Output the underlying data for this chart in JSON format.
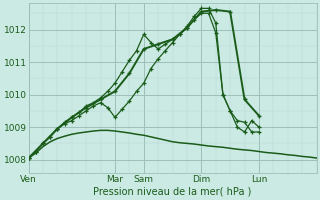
{
  "bg_color": "#cceae4",
  "grid_color_major": "#9dbfba",
  "grid_color_minor": "#b8d9d4",
  "line_color": "#1a5c1a",
  "xlabel": "Pression niveau de la mer( hPa )",
  "ylim": [
    1007.6,
    1012.8
  ],
  "yticks": [
    1008,
    1009,
    1010,
    1011,
    1012
  ],
  "xlim": [
    0,
    40
  ],
  "day_positions": [
    0,
    12,
    16,
    24,
    32
  ],
  "day_labels": [
    "Ven",
    "Mar",
    "Sam",
    "Dim",
    "Lun"
  ],
  "baseline_x": [
    0,
    1,
    2,
    3,
    4,
    5,
    6,
    7,
    8,
    9,
    10,
    11,
    12,
    13,
    14,
    15,
    16,
    17,
    18,
    19,
    20,
    21,
    22,
    23,
    24,
    25,
    26,
    27,
    28,
    29,
    30,
    31,
    32,
    33,
    34,
    35,
    36,
    37,
    38,
    39,
    40
  ],
  "baseline_y": [
    1008.05,
    1008.2,
    1008.4,
    1008.55,
    1008.65,
    1008.72,
    1008.78,
    1008.82,
    1008.85,
    1008.88,
    1008.9,
    1008.9,
    1008.88,
    1008.85,
    1008.82,
    1008.78,
    1008.75,
    1008.7,
    1008.65,
    1008.6,
    1008.55,
    1008.52,
    1008.5,
    1008.48,
    1008.45,
    1008.42,
    1008.4,
    1008.38,
    1008.35,
    1008.32,
    1008.3,
    1008.28,
    1008.25,
    1008.22,
    1008.2,
    1008.18,
    1008.15,
    1008.13,
    1008.1,
    1008.08,
    1008.05
  ],
  "line2_x": [
    0,
    1,
    2,
    3,
    4,
    5,
    6,
    7,
    8,
    9,
    10,
    11,
    12,
    13,
    14,
    15,
    16,
    17,
    18,
    19,
    20,
    21,
    22,
    23,
    24,
    25,
    26,
    27,
    28,
    29,
    30,
    31,
    32
  ],
  "line2_y": [
    1008.05,
    1008.25,
    1008.5,
    1008.7,
    1008.95,
    1009.1,
    1009.2,
    1009.35,
    1009.5,
    1009.65,
    1009.75,
    1009.6,
    1009.3,
    1009.55,
    1009.8,
    1010.1,
    1010.35,
    1010.8,
    1011.1,
    1011.35,
    1011.6,
    1011.85,
    1012.05,
    1012.3,
    1012.5,
    1012.5,
    1011.9,
    1010.0,
    1009.5,
    1009.0,
    1008.85,
    1009.2,
    1009.0
  ],
  "line3_x": [
    0,
    1,
    2,
    3,
    4,
    5,
    6,
    7,
    8,
    9,
    10,
    11,
    12,
    13,
    14,
    15,
    16,
    17,
    18,
    19,
    20,
    21,
    22,
    23,
    24,
    25,
    26,
    27,
    28,
    29,
    30,
    31,
    32
  ],
  "line3_y": [
    1008.05,
    1008.25,
    1008.5,
    1008.7,
    1008.95,
    1009.15,
    1009.3,
    1009.45,
    1009.65,
    1009.75,
    1009.9,
    1010.1,
    1010.35,
    1010.7,
    1011.05,
    1011.35,
    1011.85,
    1011.6,
    1011.4,
    1011.55,
    1011.7,
    1011.85,
    1012.1,
    1012.4,
    1012.65,
    1012.65,
    1012.2,
    1010.0,
    1009.5,
    1009.2,
    1009.15,
    1008.85,
    1008.85
  ],
  "line4_x": [
    0,
    2,
    4,
    6,
    8,
    10,
    12,
    14,
    16,
    18,
    20,
    22,
    24,
    26,
    28,
    30,
    32
  ],
  "line4_y": [
    1008.05,
    1008.5,
    1008.95,
    1009.3,
    1009.6,
    1009.85,
    1010.1,
    1010.65,
    1011.4,
    1011.55,
    1011.7,
    1012.05,
    1012.55,
    1012.6,
    1012.55,
    1009.85,
    1009.35
  ]
}
